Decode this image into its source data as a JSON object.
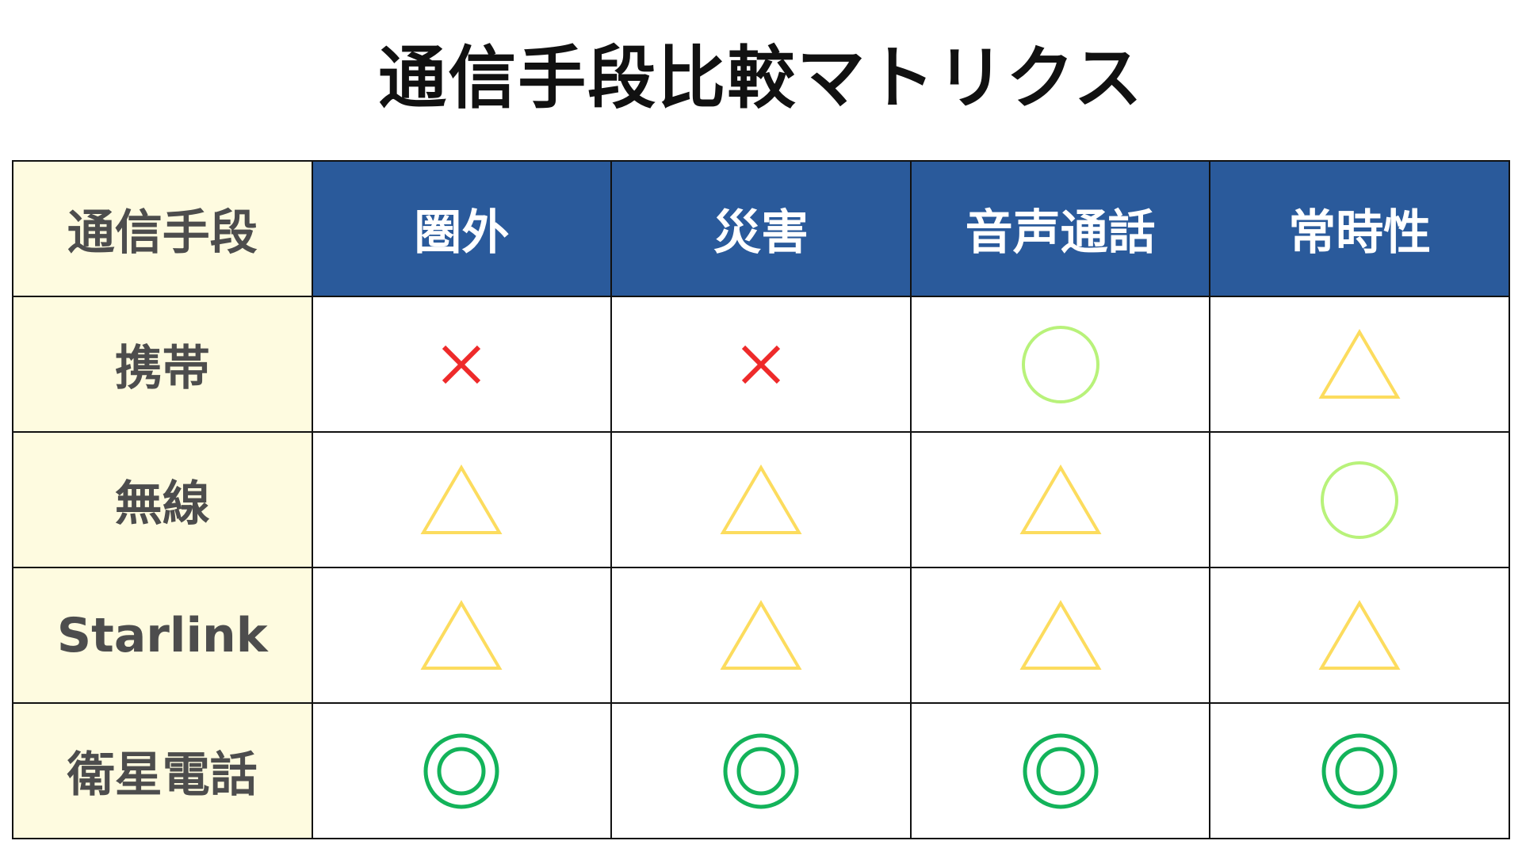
{
  "title": "通信手段比較マトリクス",
  "corner_label": "通信手段",
  "columns": [
    "圏外",
    "災害",
    "音声通話",
    "常時性"
  ],
  "rows": [
    {
      "label": "携帯",
      "ratings": [
        "×",
        "×",
        "○",
        "△"
      ]
    },
    {
      "label": "無線",
      "ratings": [
        "△",
        "△",
        "△",
        "○"
      ]
    },
    {
      "label": "Starlink",
      "ratings": [
        "△",
        "△",
        "△",
        "△"
      ]
    },
    {
      "label": "衛星電話",
      "ratings": [
        "◎",
        "◎",
        "◎",
        "◎"
      ]
    }
  ],
  "colors": {
    "header": "#2a5a9b",
    "row_header": "#fefbe0",
    "cross": "#ee2a2a",
    "circle": "#b8f27a",
    "triangle": "#fcdc5e",
    "double_circle": "#13b35a"
  }
}
